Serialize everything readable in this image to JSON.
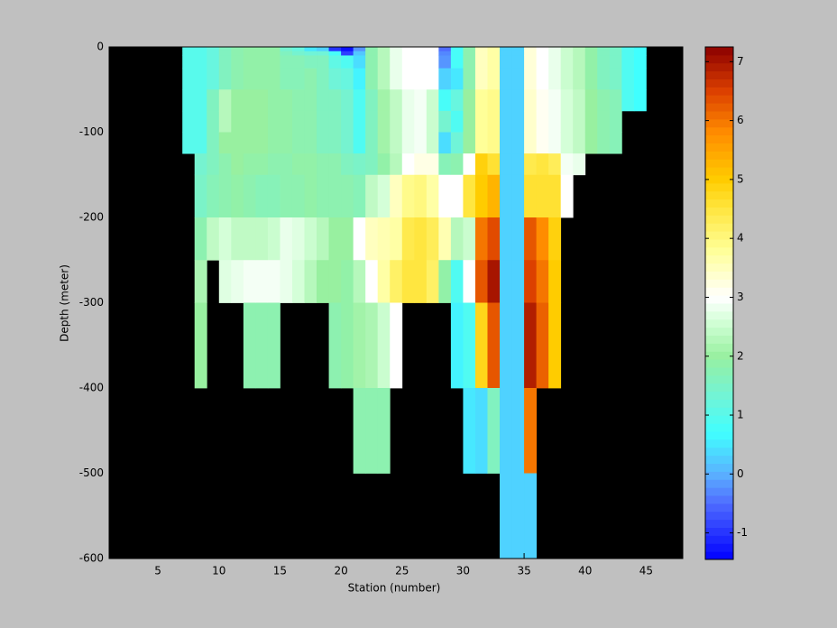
{
  "chart_data": {
    "type": "heatmap",
    "xlabel": "Station (number)",
    "ylabel": "Depth (meter)",
    "xlim": [
      1,
      48
    ],
    "ylim": [
      -600,
      0
    ],
    "xticks": [
      5,
      10,
      15,
      20,
      25,
      30,
      35,
      40,
      45
    ],
    "yticks": [
      0,
      -100,
      -200,
      -300,
      -400,
      -500,
      -600
    ],
    "x": [
      7,
      8,
      9,
      10,
      11,
      12,
      13,
      14,
      15,
      16,
      17,
      18,
      19,
      20,
      21,
      22,
      23,
      24,
      25,
      26,
      27,
      28,
      29,
      30,
      31,
      32,
      33,
      34,
      35,
      36,
      37,
      38,
      39,
      40,
      41,
      42,
      43,
      44,
      45
    ],
    "y": [
      0,
      -5,
      -10,
      -25,
      -50,
      -75,
      -100,
      -125,
      -150,
      -200,
      -250,
      -300,
      -400,
      -500,
      -600
    ],
    "clim": [
      -1.45,
      7.25
    ],
    "colorbar_ticks": [
      -1,
      0,
      1,
      2,
      3,
      4,
      5,
      6,
      7
    ],
    "background": "#000000",
    "colormap": [
      [
        -1.45,
        "#0000ff"
      ],
      [
        -0.5,
        "#4f6cff"
      ],
      [
        0,
        "#5ab0ff"
      ],
      [
        0.7,
        "#40ffff"
      ],
      [
        1.3,
        "#70f4d8"
      ],
      [
        2,
        "#98f0a0"
      ],
      [
        2.6,
        "#d4ffd8"
      ],
      [
        3,
        "#ffffff"
      ],
      [
        3.8,
        "#ffff98"
      ],
      [
        4.5,
        "#ffe640"
      ],
      [
        5,
        "#ffcc00"
      ],
      [
        5.8,
        "#ff8c00"
      ],
      [
        6.5,
        "#dc4000"
      ],
      [
        7.25,
        "#8c0000"
      ]
    ],
    "values": [
      [
        1,
        1,
        1,
        1,
        1,
        1,
        1,
        null,
        null,
        null,
        null,
        null,
        null,
        null
      ],
      [
        1,
        1,
        1,
        1,
        1,
        1,
        1,
        1.4,
        1.5,
        1.8,
        2.2,
        2.0,
        null,
        null
      ],
      [
        1.2,
        1.2,
        1.2,
        1.2,
        1.6,
        1.6,
        1.6,
        1.6,
        1.7,
        2.4,
        null,
        null,
        null,
        null
      ],
      [
        1.6,
        1.6,
        1.6,
        1.6,
        2.3,
        2.3,
        2.0,
        1.8,
        1.8,
        2.6,
        2.7,
        null,
        null,
        null
      ],
      [
        1.8,
        1.8,
        1.8,
        1.8,
        2.0,
        2.0,
        2.0,
        2.0,
        1.9,
        2.4,
        2.8,
        null,
        null,
        null
      ],
      [
        1.9,
        1.9,
        1.9,
        1.9,
        2.0,
        2.0,
        2.0,
        1.9,
        1.8,
        2.4,
        2.9,
        1.8,
        null,
        null
      ],
      [
        1.9,
        1.9,
        1.9,
        1.9,
        2.0,
        2.0,
        2.0,
        1.9,
        1.7,
        2.4,
        2.9,
        1.8,
        null,
        null
      ],
      [
        1.9,
        1.9,
        1.9,
        1.9,
        1.9,
        1.9,
        1.9,
        1.8,
        1.7,
        2.5,
        2.9,
        1.8,
        null,
        null
      ],
      [
        1.4,
        1.6,
        1.7,
        1.7,
        1.9,
        1.9,
        1.9,
        1.8,
        1.8,
        2.8,
        2.8,
        null,
        null,
        null
      ],
      [
        1.2,
        1.4,
        1.7,
        1.7,
        1.8,
        1.8,
        1.8,
        1.9,
        1.8,
        2.7,
        2.6,
        null,
        null,
        null
      ],
      [
        0.5,
        1.3,
        1.6,
        1.8,
        1.8,
        1.8,
        1.8,
        1.9,
        1.9,
        2.5,
        2.3,
        null,
        null,
        null
      ],
      [
        0.3,
        1.3,
        1.6,
        1.6,
        1.6,
        1.6,
        1.6,
        1.8,
        1.8,
        2.3,
        2.0,
        null,
        null,
        null
      ],
      [
        -1.0,
        0.8,
        1.1,
        1.3,
        1.6,
        1.6,
        1.6,
        1.8,
        1.8,
        2.0,
        2.0,
        1.8,
        null,
        null
      ],
      [
        -1.3,
        -0.9,
        0.9,
        1.2,
        1.4,
        1.4,
        1.4,
        1.6,
        1.8,
        2.0,
        1.9,
        1.9,
        null,
        null
      ],
      [
        -0.2,
        0.2,
        0.4,
        0.6,
        0.9,
        0.9,
        0.9,
        1.5,
        1.7,
        3.0,
        2.3,
        2.1,
        1.8,
        null
      ],
      [
        1.8,
        1.8,
        1.8,
        1.8,
        1.6,
        1.6,
        1.6,
        1.6,
        2.4,
        3.5,
        3.0,
        2.2,
        1.8,
        null
      ],
      [
        2.3,
        2.3,
        2.3,
        2.3,
        2.1,
        2.1,
        2.1,
        1.9,
        2.6,
        3.6,
        3.7,
        2.5,
        1.8,
        null
      ],
      [
        2.8,
        2.8,
        2.8,
        2.8,
        2.4,
        2.4,
        2.4,
        2.3,
        3.5,
        3.7,
        4.2,
        3.0,
        null,
        null
      ],
      [
        3.0,
        3.0,
        3.0,
        3.0,
        2.8,
        2.8,
        2.8,
        3.0,
        3.9,
        4.4,
        4.5,
        null,
        null,
        null
      ],
      [
        3.0,
        3.0,
        3.0,
        3.0,
        2.9,
        2.9,
        2.9,
        3.2,
        4.0,
        4.5,
        4.5,
        null,
        null,
        null
      ],
      [
        3.0,
        3.0,
        3.0,
        3.0,
        2.5,
        2.5,
        2.5,
        3.2,
        3.7,
        4.3,
        4.2,
        null,
        null,
        null
      ],
      [
        -0.5,
        -0.3,
        -0.2,
        0.3,
        0.8,
        1.4,
        0.4,
        1.7,
        3.0,
        3.6,
        1.9,
        null,
        null,
        null
      ],
      [
        0.8,
        0.8,
        0.8,
        0.5,
        1.2,
        0.9,
        1.3,
        1.8,
        3.0,
        2.3,
        0.9,
        0.6,
        null,
        null
      ],
      [
        1.8,
        1.8,
        1.8,
        1.8,
        2.0,
        2.0,
        2.0,
        3.0,
        4.5,
        2.5,
        3.0,
        0.9,
        0.5,
        null
      ],
      [
        3.5,
        3.5,
        3.5,
        3.5,
        3.8,
        3.8,
        3.8,
        4.9,
        5.0,
        6.0,
        6.3,
        4.8,
        0.4,
        null
      ],
      [
        3.7,
        3.7,
        3.7,
        3.7,
        3.9,
        3.9,
        3.9,
        4.6,
        5.3,
        6.4,
        7.0,
        6.3,
        1.6,
        null
      ],
      [
        0.3,
        0.3,
        0.3,
        0.3,
        0.3,
        0.3,
        0.3,
        0.3,
        0.3,
        0.3,
        0.3,
        0.3,
        0.3,
        0.3
      ],
      [
        0.3,
        0.3,
        0.3,
        0.3,
        0.3,
        0.3,
        0.3,
        0.3,
        0.3,
        0.3,
        0.3,
        0.3,
        0.3,
        0.3
      ],
      [
        3.3,
        3.3,
        3.3,
        3.3,
        3.4,
        3.4,
        3.4,
        4.4,
        4.6,
        6.3,
        6.5,
        6.9,
        6.0,
        0.3
      ],
      [
        3.0,
        3.0,
        3.0,
        3.0,
        3.1,
        3.1,
        3.1,
        4.5,
        4.6,
        5.8,
        6.0,
        6.2,
        null,
        null
      ],
      [
        2.8,
        2.8,
        2.8,
        2.8,
        2.9,
        2.9,
        2.9,
        4.3,
        4.6,
        4.9,
        5.0,
        5.0,
        null,
        null
      ],
      [
        2.5,
        2.5,
        2.5,
        2.5,
        2.6,
        2.6,
        2.6,
        2.9,
        3.0,
        null,
        null,
        null,
        null,
        null
      ],
      [
        2.3,
        2.3,
        2.3,
        2.3,
        2.4,
        2.4,
        2.4,
        2.8,
        null,
        null,
        null,
        null,
        null,
        null
      ],
      [
        1.9,
        1.9,
        1.9,
        1.9,
        2.0,
        2.0,
        2.0,
        null,
        null,
        null,
        null,
        null,
        null,
        null
      ],
      [
        1.6,
        1.6,
        1.6,
        1.6,
        1.8,
        1.8,
        1.8,
        null,
        null,
        null,
        null,
        null,
        null,
        null
      ],
      [
        1.5,
        1.5,
        1.5,
        1.5,
        1.7,
        1.7,
        1.7,
        null,
        null,
        null,
        null,
        null,
        null,
        null
      ],
      [
        0.9,
        0.9,
        0.9,
        0.9,
        0.9,
        null,
        null,
        null,
        null,
        null,
        null,
        null,
        null,
        null
      ],
      [
        0.7,
        0.7,
        0.7,
        0.7,
        0.7,
        null,
        null,
        null,
        null,
        null,
        null,
        null,
        null,
        null
      ]
    ]
  }
}
